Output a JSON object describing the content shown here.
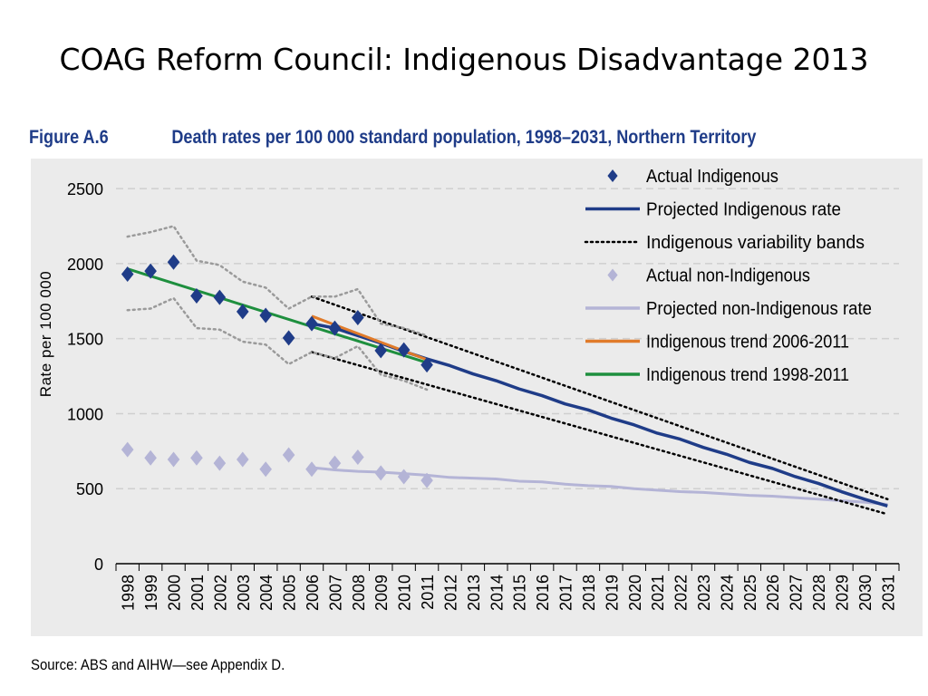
{
  "slide": {
    "title": "COAG Reform Council: Indigenous Disadvantage 2013"
  },
  "figure": {
    "number": "Figure A.6",
    "caption": "Death rates per 100 000 standard population, 1998–2031, Northern Territory"
  },
  "source": "Source: ABS and AIHW—see Appendix D.",
  "colors": {
    "panel_bg": "#ebebeb",
    "indigenous": "#1f3c88",
    "non_indigenous": "#b4b4d6",
    "band": "#000000",
    "band_early": "#9a9a9a",
    "trend_2006_2011": "#e07b2a",
    "trend_1998_2011": "#1e8f3e",
    "grid": "#cfcfcf"
  },
  "chart_data": {
    "type": "line",
    "title": "Death rates per 100 000 standard population, 1998–2031, Northern Territory",
    "ylabel": "Rate per 100 000",
    "xlabel": "",
    "ylim": [
      0,
      2700
    ],
    "yticks": [
      0,
      500,
      1000,
      1500,
      2000,
      2500
    ],
    "grid": "horizontal dashed",
    "legend_position": "top-right",
    "categories": [
      "1998",
      "1999",
      "2000",
      "2001",
      "2002",
      "2003",
      "2004",
      "2005",
      "2006",
      "2007",
      "2008",
      "2009",
      "2010",
      "2011",
      "2012",
      "2013",
      "2014",
      "2015",
      "2016",
      "2017",
      "2018",
      "2019",
      "2020",
      "2021",
      "2022",
      "2023",
      "2024",
      "2025",
      "2026",
      "2027",
      "2028",
      "2029",
      "2030",
      "2031"
    ],
    "series": [
      {
        "name": "Actual Indigenous",
        "kind": "diamond",
        "color": "#1f3c88",
        "x": [
          1998,
          1999,
          2000,
          2001,
          2002,
          2003,
          2004,
          2005,
          2006,
          2007,
          2008,
          2009,
          2010,
          2011
        ],
        "y": [
          1930,
          1950,
          2010,
          1785,
          1775,
          1680,
          1655,
          1505,
          1600,
          1570,
          1640,
          1420,
          1425,
          1325
        ]
      },
      {
        "name": "Projected Indigenous rate",
        "kind": "line",
        "color": "#1f3c88",
        "width": 3.5,
        "x": [
          2006,
          2007,
          2008,
          2009,
          2010,
          2011,
          2012,
          2013,
          2014,
          2015,
          2016,
          2017,
          2018,
          2019,
          2020,
          2021,
          2022,
          2023,
          2024,
          2025,
          2026,
          2027,
          2028,
          2029,
          2030,
          2031
        ],
        "y": [
          1600,
          1570,
          1520,
          1470,
          1415,
          1365,
          1320,
          1265,
          1220,
          1165,
          1120,
          1065,
          1025,
          970,
          925,
          870,
          830,
          775,
          730,
          675,
          635,
          580,
          535,
          480,
          430,
          385
        ]
      },
      {
        "name": "Indigenous variability bands",
        "kind": "dotted",
        "color": "#000000",
        "x": [
          2006,
          2031
        ],
        "y": [
          1780,
          430
        ]
      },
      {
        "name": "",
        "kind": "dotted",
        "color": "#000000",
        "x": [
          2006,
          2031
        ],
        "y": [
          1410,
          330
        ]
      },
      {
        "name": "",
        "kind": "dotted",
        "color": "#9a9a9a",
        "x": [
          1998,
          1999,
          2000,
          2001,
          2002,
          2003,
          2004,
          2005,
          2006,
          2007,
          2008,
          2009,
          2010,
          2011
        ],
        "y": [
          2180,
          2210,
          2250,
          2020,
          1990,
          1880,
          1840,
          1700,
          1780,
          1780,
          1830,
          1600,
          1570,
          1520
        ]
      },
      {
        "name": "",
        "kind": "dotted",
        "color": "#9a9a9a",
        "x": [
          1998,
          1999,
          2000,
          2001,
          2002,
          2003,
          2004,
          2005,
          2006,
          2007,
          2008,
          2009,
          2010,
          2011
        ],
        "y": [
          1690,
          1700,
          1770,
          1570,
          1560,
          1480,
          1460,
          1330,
          1410,
          1370,
          1450,
          1260,
          1220,
          1160
        ]
      },
      {
        "name": "Actual non-Indigenous",
        "kind": "diamond",
        "color": "#b4b4d6",
        "x": [
          1998,
          1999,
          2000,
          2001,
          2002,
          2003,
          2004,
          2005,
          2006,
          2007,
          2008,
          2009,
          2010,
          2011
        ],
        "y": [
          760,
          705,
          695,
          705,
          670,
          695,
          630,
          725,
          630,
          670,
          710,
          605,
          580,
          555
        ]
      },
      {
        "name": "Projected non-Indigenous rate",
        "kind": "line",
        "color": "#b4b4d6",
        "width": 3,
        "x": [
          2006,
          2007,
          2008,
          2009,
          2010,
          2011,
          2012,
          2013,
          2014,
          2015,
          2016,
          2017,
          2018,
          2019,
          2020,
          2021,
          2022,
          2023,
          2024,
          2025,
          2026,
          2027,
          2028,
          2029,
          2030,
          2031
        ],
        "y": [
          640,
          625,
          615,
          610,
          600,
          590,
          575,
          570,
          565,
          550,
          545,
          530,
          520,
          515,
          500,
          490,
          480,
          475,
          465,
          455,
          450,
          440,
          430,
          420,
          410,
          395
        ]
      },
      {
        "name": "Indigenous trend 2006-2011",
        "kind": "line",
        "color": "#e07b2a",
        "width": 3,
        "x": [
          2006,
          2011
        ],
        "y": [
          1650,
          1360
        ]
      },
      {
        "name": "Indigenous trend 1998-2011",
        "kind": "line",
        "color": "#1e8f3e",
        "width": 3,
        "x": [
          1998,
          2011
        ],
        "y": [
          1965,
          1340
        ]
      }
    ]
  }
}
